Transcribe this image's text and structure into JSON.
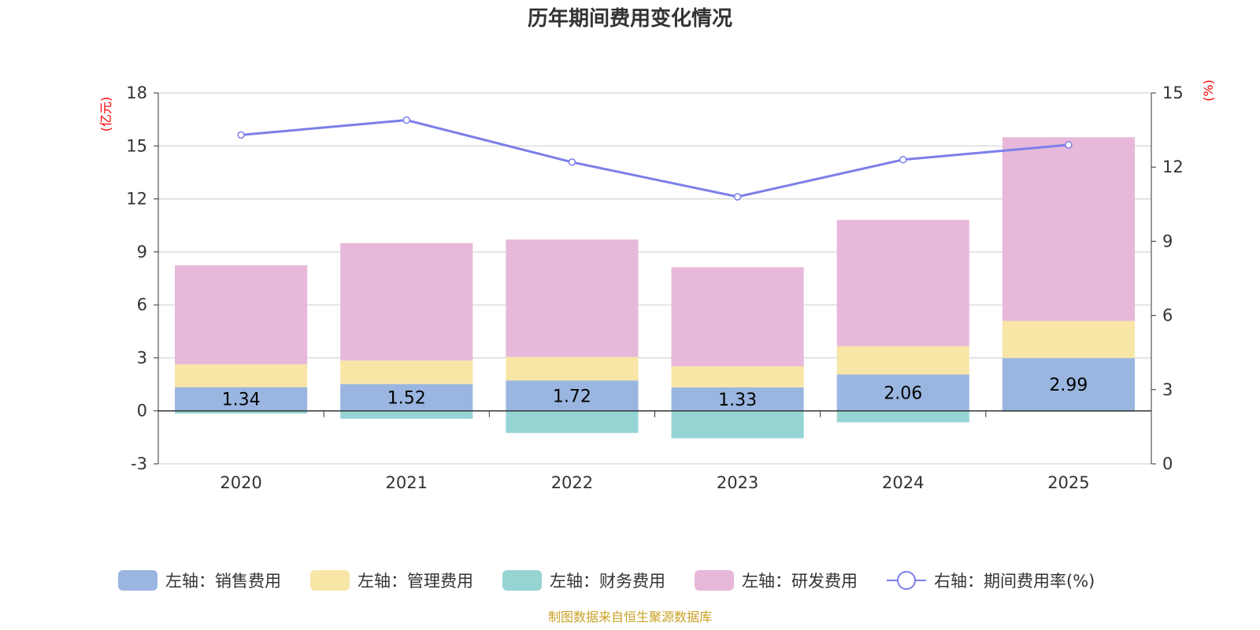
{
  "chart_data": {
    "type": "bar",
    "stacked": true,
    "title": "历年期间费用变化情况",
    "categories": [
      "2020",
      "2021",
      "2022",
      "2023",
      "2024",
      "2025"
    ],
    "left_axis": {
      "unit_label": "(亿元)",
      "min": -3,
      "max": 18,
      "ticks": [
        -3,
        0,
        3,
        6,
        9,
        12,
        15,
        18
      ]
    },
    "right_axis": {
      "unit_label": "(%)",
      "min": 0,
      "max": 15,
      "ticks": [
        0,
        3,
        6,
        9,
        12,
        15
      ]
    },
    "series": [
      {
        "name": "左轴：销售费用",
        "axis": "left",
        "type": "bar",
        "color": "#9ab6e0",
        "values": [
          1.34,
          1.52,
          1.72,
          1.33,
          2.06,
          2.99
        ],
        "data_labels": [
          "1.34",
          "1.52",
          "1.72",
          "1.33",
          "2.06",
          "2.99"
        ]
      },
      {
        "name": "左轴：管理费用",
        "axis": "left",
        "type": "bar",
        "color": "#f7e6a6",
        "values": [
          1.3,
          1.33,
          1.33,
          1.2,
          1.6,
          2.1
        ]
      },
      {
        "name": "左轴：财务费用",
        "axis": "left",
        "type": "bar",
        "color": "#96d4d4",
        "values": [
          -0.15,
          -0.45,
          -1.25,
          -1.55,
          -0.65,
          -0.05
        ]
      },
      {
        "name": "左轴：研发费用",
        "axis": "left",
        "type": "bar",
        "color": "#e7b8d9",
        "values": [
          5.6,
          6.65,
          6.65,
          5.6,
          7.15,
          10.4
        ]
      },
      {
        "name": "右轴：期间费用率(%)",
        "axis": "right",
        "type": "line",
        "color": "#7b7fe8",
        "values": [
          13.3,
          13.9,
          12.2,
          10.8,
          12.3,
          12.9
        ]
      }
    ],
    "legend_position": "bottom",
    "grid": true
  },
  "source_text": "制图数据来自恒生聚源数据库"
}
